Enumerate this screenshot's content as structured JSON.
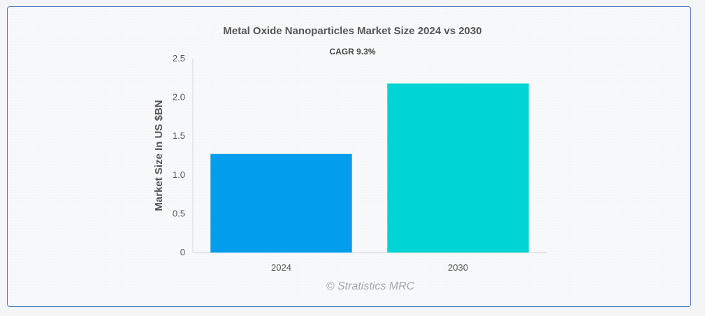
{
  "chart_data": {
    "type": "bar",
    "title": "Metal Oxide Nanoparticles Market Size 2024 vs 2030",
    "subtitle": "CAGR 9.3%",
    "xlabel": "",
    "ylabel": "Market Size In US $BN",
    "categories": [
      "2024",
      "2030"
    ],
    "values": [
      1.27,
      2.18
    ],
    "colors": [
      "#039ded",
      "#00d4d4"
    ],
    "ylim": [
      0,
      2.5
    ],
    "yticks": [
      "0",
      "0.5",
      "1.0",
      "1.5",
      "2.0",
      "2.5"
    ],
    "grid": false,
    "legend": "none"
  },
  "credit": "© Stratistics MRC"
}
